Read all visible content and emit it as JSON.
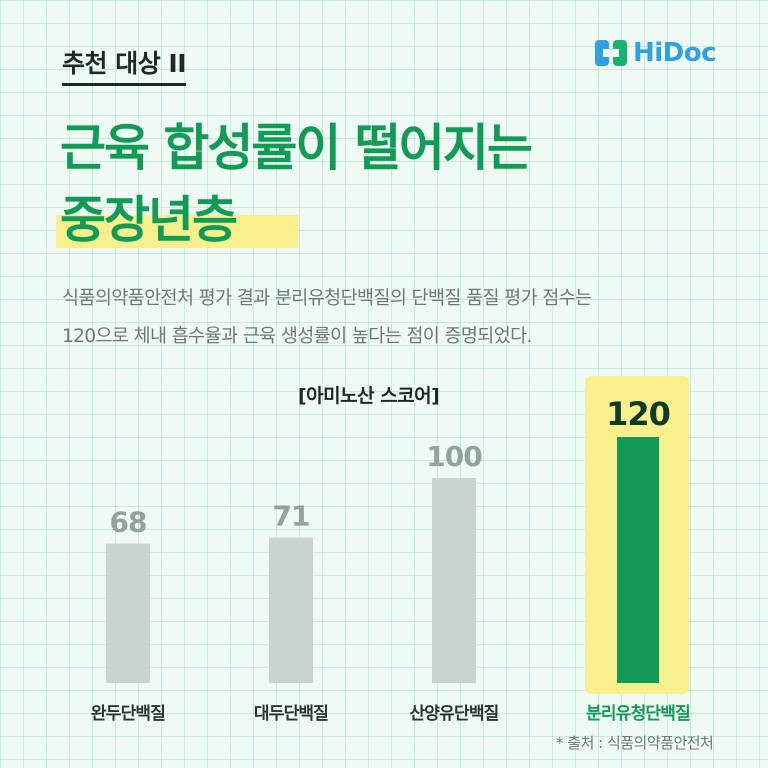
{
  "header": {
    "tag": "추천 대상 II",
    "brand": "HiDoc",
    "title_line1": "근육 합성률이 떨어지는",
    "title_line2": "중장년층"
  },
  "description": {
    "line1": "식품의약품안전처 평가 결과 분리유청단백질의 단백질 품질 평가 점수는",
    "line2": "120으로 체내 흡수율과 근육 생성률이 높다는 점이 증명되었다."
  },
  "source": "* 출처 : 식품의약품안전처",
  "colors": {
    "brand_green": "#129b56",
    "bar_gray": "#c9d3d0",
    "highlight_yellow": "#f8f08c",
    "brand_blue": "#2ea0e6"
  },
  "chart_data": {
    "type": "bar",
    "title": "[아미노산 스코어]",
    "categories": [
      "완두단백질",
      "대두단백질",
      "산양유단백질",
      "분리유청단백질"
    ],
    "values": [
      68,
      71,
      100,
      120
    ],
    "value_labels": [
      "68",
      "71",
      "100",
      "120"
    ],
    "highlight": "분리유청단백질",
    "xlabel": "",
    "ylabel": "",
    "grid": false,
    "legend": "none"
  }
}
